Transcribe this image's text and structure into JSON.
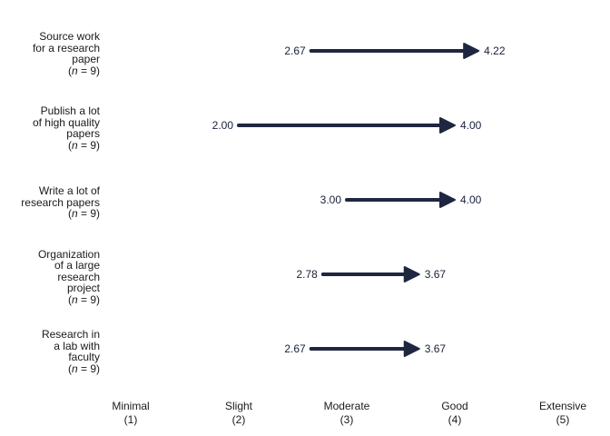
{
  "chart_data": {
    "type": "arrow",
    "xlim": [
      1,
      5
    ],
    "grid": false,
    "arrow_color": "#1f2640",
    "ticks": [
      {
        "name": "Minimal",
        "value": 1,
        "code": "(1)"
      },
      {
        "name": "Slight",
        "value": 2,
        "code": "(2)"
      },
      {
        "name": "Moderate",
        "value": 3,
        "code": "(3)"
      },
      {
        "name": "Good",
        "value": 4,
        "code": "(4)"
      },
      {
        "name": "Extensive",
        "value": 5,
        "code": "(5)"
      }
    ],
    "items": [
      {
        "label_lines": [
          "Source work",
          "for a research",
          "paper"
        ],
        "n": "9",
        "start": 2.67,
        "end": 4.22,
        "start_label": "2.67",
        "end_label": "4.22"
      },
      {
        "label_lines": [
          "Publish a lot",
          "of high quality",
          "papers"
        ],
        "n": "9",
        "start": 2.0,
        "end": 4.0,
        "start_label": "2.00",
        "end_label": "4.00"
      },
      {
        "label_lines": [
          "Write a lot of",
          "research papers"
        ],
        "n": "9",
        "start": 3.0,
        "end": 4.0,
        "start_label": "3.00",
        "end_label": "4.00"
      },
      {
        "label_lines": [
          "Organization",
          "of a large",
          "research",
          "project"
        ],
        "n": "9",
        "start": 2.78,
        "end": 3.67,
        "start_label": "2.78",
        "end_label": "3.67"
      },
      {
        "label_lines": [
          "Research in",
          "a lab with",
          "faculty"
        ],
        "n": "9",
        "start": 2.67,
        "end": 3.67,
        "start_label": "2.67",
        "end_label": "3.67"
      }
    ]
  }
}
